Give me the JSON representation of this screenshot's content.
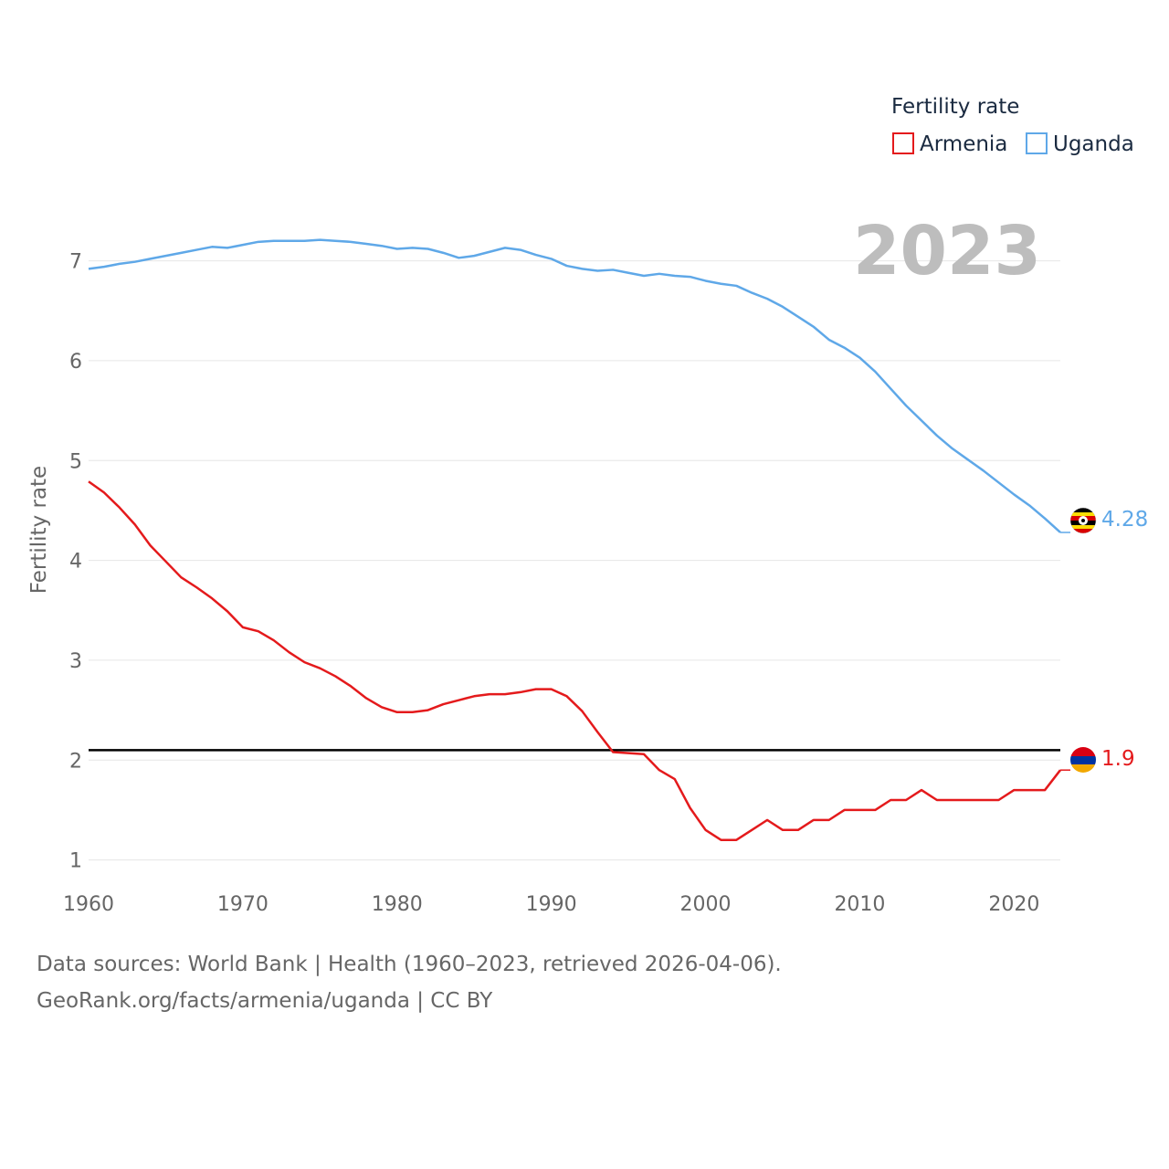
{
  "chart_data": {
    "type": "line",
    "ylabel": "Fertility rate",
    "xlabel": "",
    "year_label": "2023",
    "xlim": [
      1960,
      2023
    ],
    "ylim": [
      0.85,
      7.6
    ],
    "xticks": [
      "1960",
      "1970",
      "1980",
      "1990",
      "2000",
      "2010",
      "2020"
    ],
    "yticks": [
      "1",
      "2",
      "3",
      "4",
      "5",
      "6",
      "7"
    ],
    "reference_line": 2.1,
    "legend": {
      "title": "Fertility rate",
      "position": "top-right"
    },
    "x": [
      1960,
      1961,
      1962,
      1963,
      1964,
      1965,
      1966,
      1967,
      1968,
      1969,
      1970,
      1971,
      1972,
      1973,
      1974,
      1975,
      1976,
      1977,
      1978,
      1979,
      1980,
      1981,
      1982,
      1983,
      1984,
      1985,
      1986,
      1987,
      1988,
      1989,
      1990,
      1991,
      1992,
      1993,
      1994,
      1995,
      1996,
      1997,
      1998,
      1999,
      2000,
      2001,
      2002,
      2003,
      2004,
      2005,
      2006,
      2007,
      2008,
      2009,
      2010,
      2011,
      2012,
      2013,
      2014,
      2015,
      2016,
      2017,
      2018,
      2019,
      2020,
      2021,
      2022,
      2023
    ],
    "series": [
      {
        "name": "Armenia",
        "color": "#e41a1c",
        "end_label": "1.9",
        "values": [
          4.79,
          4.68,
          4.53,
          4.36,
          4.15,
          3.99,
          3.83,
          3.73,
          3.62,
          3.49,
          3.33,
          3.29,
          3.2,
          3.08,
          2.98,
          2.92,
          2.84,
          2.74,
          2.62,
          2.53,
          2.48,
          2.48,
          2.5,
          2.56,
          2.6,
          2.64,
          2.66,
          2.66,
          2.68,
          2.71,
          2.71,
          2.64,
          2.49,
          2.28,
          2.08,
          2.07,
          2.06,
          1.9,
          1.81,
          1.52,
          1.3,
          1.2,
          1.2,
          1.3,
          1.4,
          1.3,
          1.3,
          1.4,
          1.4,
          1.5,
          1.5,
          1.5,
          1.6,
          1.6,
          1.7,
          1.6,
          1.6,
          1.6,
          1.6,
          1.6,
          1.7,
          1.7,
          1.7,
          1.9
        ]
      },
      {
        "name": "Uganda",
        "color": "#5fa8e8",
        "end_label": "4.28",
        "values": [
          6.92,
          6.94,
          6.97,
          6.99,
          7.02,
          7.05,
          7.08,
          7.11,
          7.14,
          7.13,
          7.16,
          7.19,
          7.2,
          7.2,
          7.2,
          7.21,
          7.2,
          7.19,
          7.17,
          7.15,
          7.12,
          7.13,
          7.12,
          7.08,
          7.03,
          7.05,
          7.09,
          7.13,
          7.11,
          7.06,
          7.02,
          6.95,
          6.92,
          6.9,
          6.91,
          6.88,
          6.85,
          6.87,
          6.85,
          6.84,
          6.8,
          6.77,
          6.75,
          6.68,
          6.62,
          6.54,
          6.44,
          6.34,
          6.21,
          6.13,
          6.03,
          5.89,
          5.72,
          5.55,
          5.4,
          5.25,
          5.12,
          5.01,
          4.9,
          4.78,
          4.66,
          4.55,
          4.42,
          4.28
        ]
      }
    ]
  },
  "footer": {
    "line1": "Data sources: World Bank | Health (1960–2023, retrieved 2026-04-06).",
    "line2": "GeoRank.org/facts/armenia/uganda | CC BY"
  }
}
